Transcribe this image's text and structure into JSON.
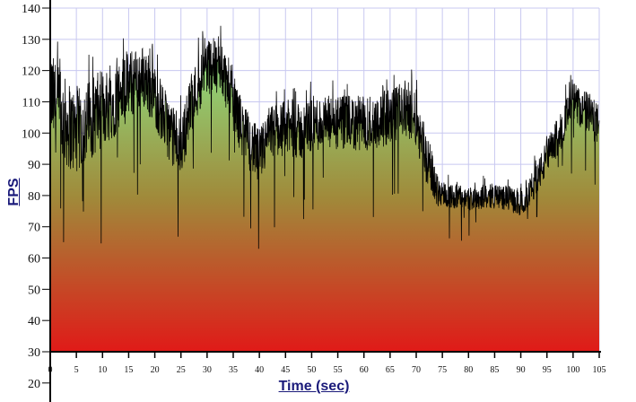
{
  "chart_data": {
    "type": "area",
    "xlabel": "Time (sec)",
    "ylabel": "FPS",
    "xlim": [
      0,
      105
    ],
    "ylim": [
      20,
      140
    ],
    "fill_baseline": 30,
    "xticks": [
      0,
      5,
      10,
      15,
      20,
      25,
      30,
      35,
      40,
      45,
      50,
      55,
      60,
      65,
      70,
      75,
      80,
      85,
      90,
      95,
      100,
      105
    ],
    "yticks": [
      20,
      30,
      40,
      50,
      60,
      70,
      80,
      90,
      100,
      110,
      120,
      130,
      140
    ],
    "grid": true,
    "series": [
      {
        "name": "FPS",
        "trend_x": [
          0,
          2,
          5,
          8,
          10,
          12,
          15,
          18,
          20,
          23,
          25,
          27,
          30,
          33,
          35,
          37,
          40,
          42,
          45,
          48,
          50,
          55,
          60,
          65,
          68,
          70,
          72,
          74,
          76,
          80,
          85,
          88,
          90,
          92,
          95,
          98,
          100,
          103,
          105
        ],
        "trend_y": [
          112,
          105,
          100,
          105,
          108,
          110,
          115,
          118,
          112,
          100,
          95,
          110,
          122,
          120,
          110,
          100,
          92,
          100,
          102,
          100,
          103,
          103,
          103,
          105,
          108,
          105,
          92,
          82,
          80,
          79,
          80,
          79,
          77,
          82,
          92,
          102,
          110,
          106,
          102
        ],
        "noise_amplitude_x": [
          0,
          20,
          40,
          72,
          75,
          90,
          95,
          105
        ],
        "noise_amplitude": [
          15,
          10,
          9,
          9,
          4,
          4,
          6,
          7
        ]
      }
    ],
    "colors": {
      "line": "#000000",
      "fill_top": "#8fd478",
      "fill_mid": "#a08a3a",
      "fill_bottom": "#e01a18",
      "grid": "#c8c8f0"
    }
  }
}
